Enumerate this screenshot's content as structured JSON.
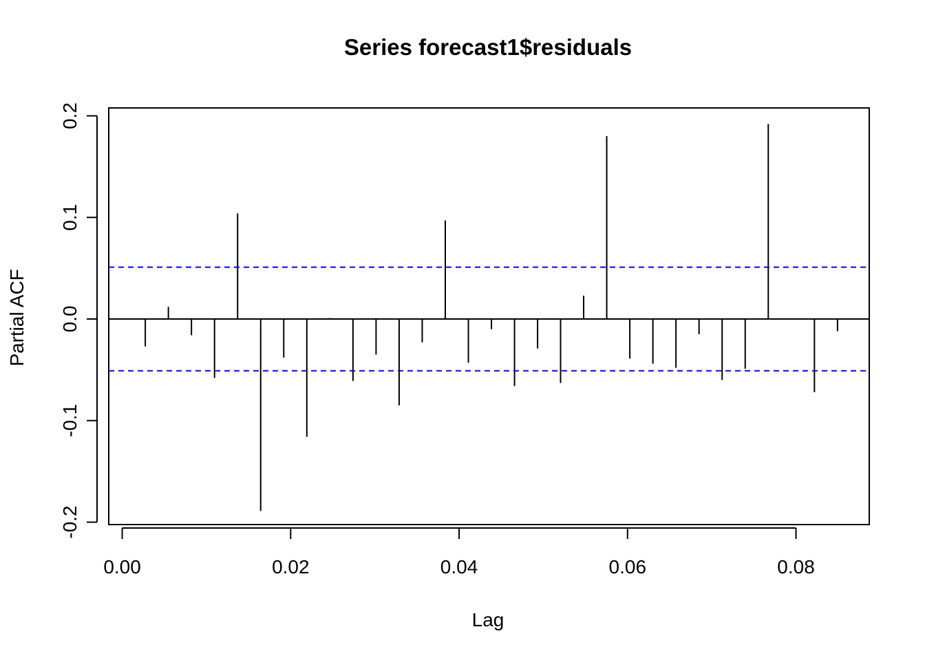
{
  "chart_data": {
    "type": "bar",
    "title": "Series  forecast1$residuals",
    "xlabel": "Lag",
    "ylabel": "Partial ACF",
    "xlim": [
      -0.0016,
      0.0887
    ],
    "ylim": [
      -0.2,
      0.2
    ],
    "x_ticks": [
      0.0,
      0.02,
      0.04,
      0.06,
      0.08
    ],
    "x_tick_labels": [
      "0.00",
      "0.02",
      "0.04",
      "0.06",
      "0.08"
    ],
    "y_ticks": [
      -0.2,
      -0.1,
      0.0,
      0.1,
      0.2
    ],
    "y_tick_labels": [
      "-0.2",
      "-0.1",
      "0.0",
      "0.1",
      "0.2"
    ],
    "confidence_bounds": [
      0.051,
      -0.051
    ],
    "confidence_color": "#0000ff",
    "bar_color": "#000000",
    "lags": [
      0.00274,
      0.00548,
      0.00822,
      0.01096,
      0.0137,
      0.01644,
      0.01918,
      0.02192,
      0.02466,
      0.0274,
      0.03014,
      0.03288,
      0.03562,
      0.03836,
      0.0411,
      0.04384,
      0.04658,
      0.04932,
      0.05205,
      0.05479,
      0.05753,
      0.06027,
      0.06301,
      0.06575,
      0.06849,
      0.07123,
      0.07397,
      0.07671,
      0.07945,
      0.08219,
      0.08493
    ],
    "values": [
      -0.027,
      0.012,
      -0.016,
      -0.058,
      0.104,
      -0.189,
      -0.038,
      -0.116,
      0.001,
      -0.061,
      -0.035,
      -0.085,
      -0.023,
      0.097,
      -0.043,
      -0.01,
      -0.066,
      -0.029,
      -0.063,
      0.023,
      0.18,
      -0.039,
      -0.044,
      -0.048,
      -0.015,
      -0.06,
      -0.049,
      0.192,
      0.0,
      -0.072,
      -0.012
    ]
  }
}
